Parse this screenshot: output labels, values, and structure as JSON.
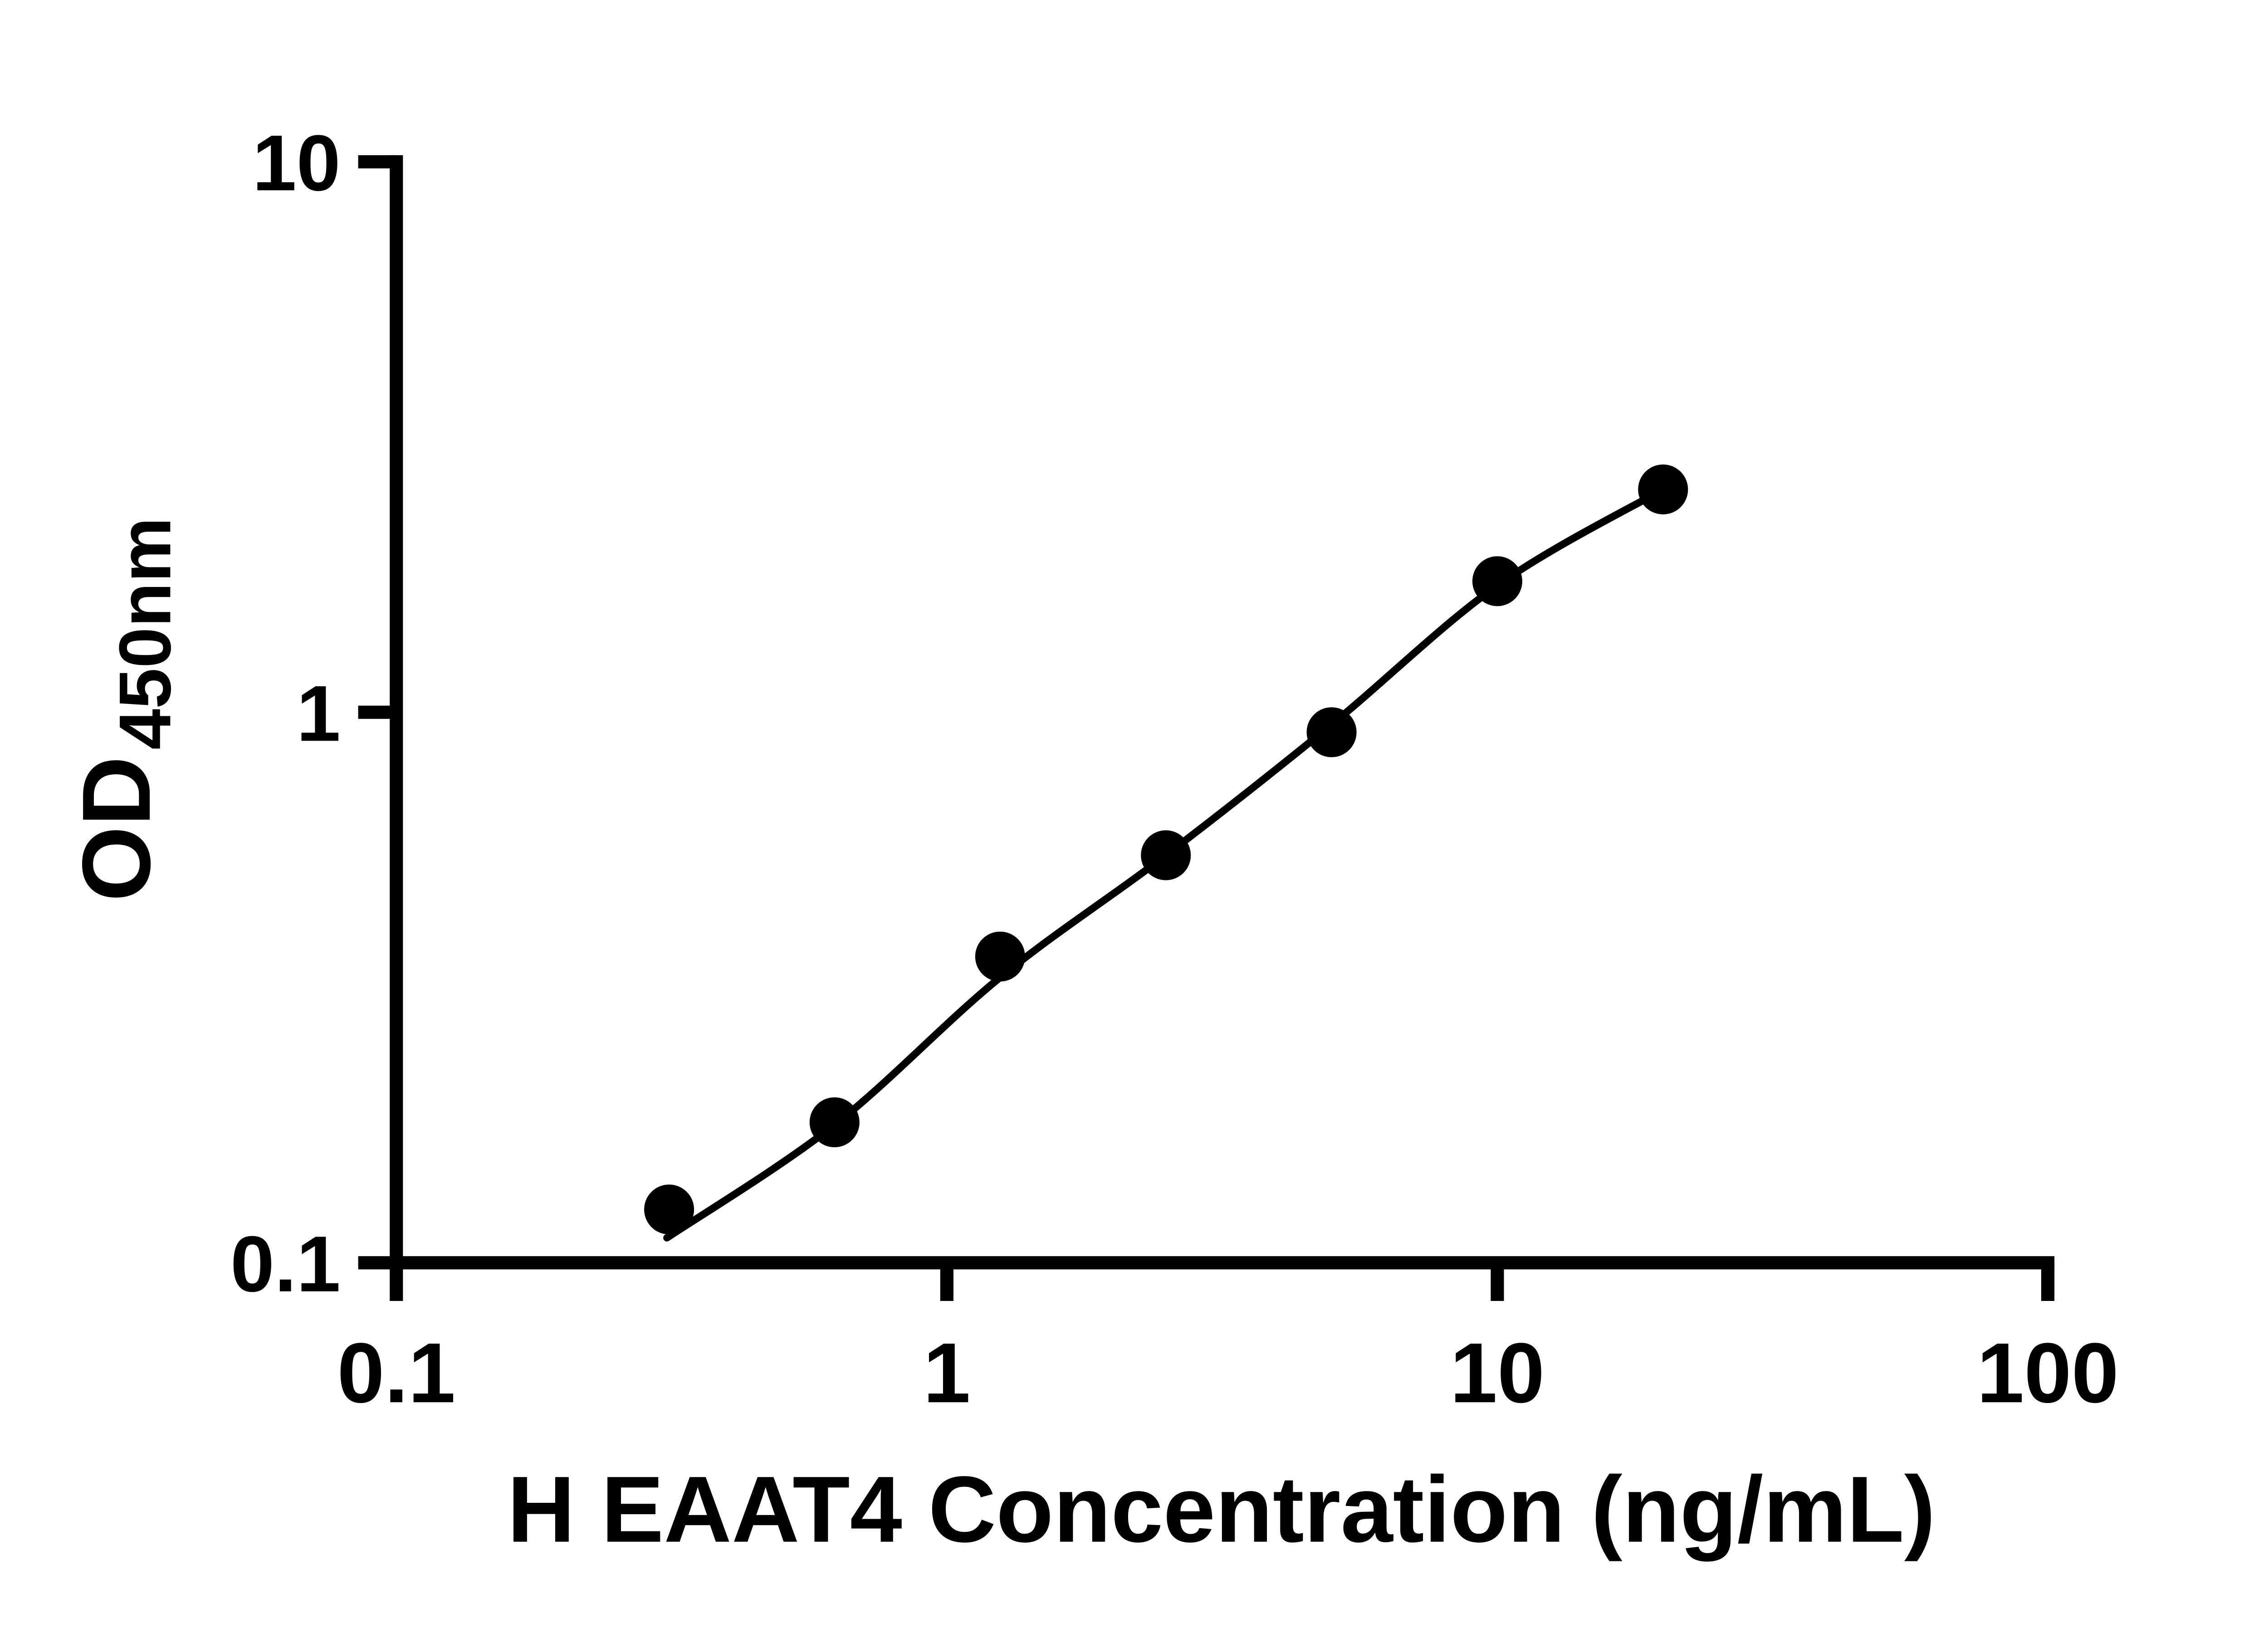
{
  "chart_data": {
    "type": "scatter",
    "title": "",
    "xlabel": "H EAAT4 Concentration (ng/mL)",
    "ylabel": "OD",
    "ylabel_subscript": "450nm",
    "x_scale": "log",
    "y_scale": "log",
    "xlim": [
      0.1,
      100
    ],
    "ylim": [
      0.1,
      10
    ],
    "x_ticks": [
      0.1,
      1,
      10,
      100
    ],
    "x_tick_labels": [
      "0.1",
      "1",
      "10",
      "100"
    ],
    "y_ticks": [
      0.1,
      1,
      10
    ],
    "y_tick_labels": [
      "0.1",
      "1",
      "10"
    ],
    "grid": false,
    "legend": "none",
    "points": [
      {
        "x": 0.313,
        "y": 0.125
      },
      {
        "x": 0.625,
        "y": 0.18
      },
      {
        "x": 1.25,
        "y": 0.36
      },
      {
        "x": 2.5,
        "y": 0.55
      },
      {
        "x": 5,
        "y": 0.92
      },
      {
        "x": 10,
        "y": 1.73
      },
      {
        "x": 20,
        "y": 2.54
      }
    ],
    "fit_curve": [
      {
        "x": 0.31,
        "y": 0.111
      },
      {
        "x": 0.625,
        "y": 0.178
      },
      {
        "x": 1.25,
        "y": 0.33
      },
      {
        "x": 2.5,
        "y": 0.55
      },
      {
        "x": 5,
        "y": 0.95
      },
      {
        "x": 10,
        "y": 1.7
      },
      {
        "x": 20,
        "y": 2.54
      }
    ],
    "marker_color": "#000000",
    "line_color": "#000000",
    "axis_color": "#000000"
  }
}
